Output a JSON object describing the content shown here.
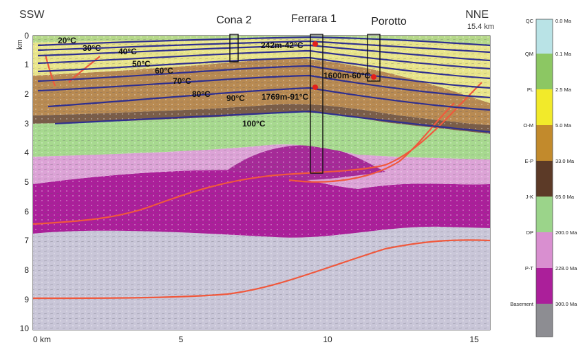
{
  "section": {
    "left_label": "SSW",
    "right_label": "NNE",
    "right_distance": "15.4 km",
    "depth_unit": "km",
    "depth_ticks": [
      "0",
      "1",
      "2",
      "3",
      "4",
      "5",
      "6",
      "7",
      "8",
      "9",
      "10"
    ],
    "distance_ticks": [
      "0 km",
      "5",
      "10",
      "15"
    ],
    "wells": [
      {
        "name": "Cona 2"
      },
      {
        "name": "Ferrara 1"
      },
      {
        "name": "Porotto"
      }
    ],
    "isotherms": [
      "20°C",
      "30°C",
      "40°C",
      "50°C",
      "60°C",
      "70°C",
      "80°C",
      "90°C",
      "100°C"
    ],
    "temperature_points": [
      "242m-42°C",
      "1769m-91°C",
      "1600m-60°C"
    ]
  },
  "legend": {
    "units": [
      {
        "code": "QC",
        "age": "0.0 Ma",
        "color": "#b9e3e6"
      },
      {
        "code": "QM",
        "age": "0.1 Ma",
        "color": "#8cc763"
      },
      {
        "code": "PL",
        "age": "2.5 Ma",
        "color": "#f2ea2a"
      },
      {
        "code": "O-M",
        "age": "5.0 Ma",
        "color": "#c28a2c"
      },
      {
        "code": "E-P",
        "age": "33.0 Ma",
        "color": "#5c3a27"
      },
      {
        "code": "J-K",
        "age": "65.0 Ma",
        "color": "#9bd48a"
      },
      {
        "code": "DP",
        "age": "200.0 Ma",
        "color": "#d98fd0"
      },
      {
        "code": "P-T",
        "age": "228.0 Ma",
        "color": "#ab1f9a"
      },
      {
        "code": "Basement",
        "age": "300.0 Ma",
        "color": "#8d8d92"
      }
    ]
  }
}
